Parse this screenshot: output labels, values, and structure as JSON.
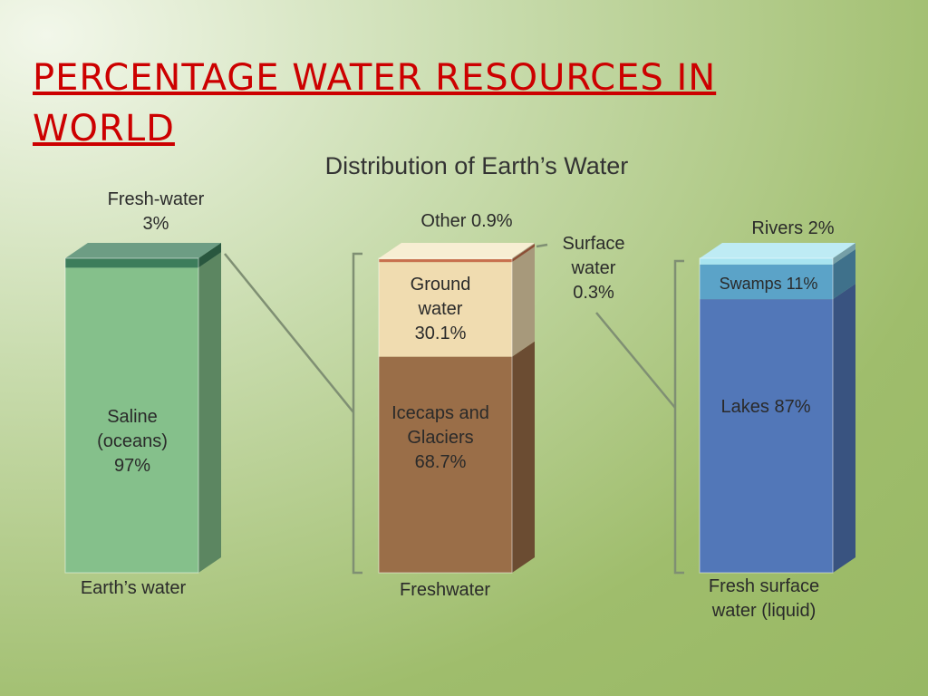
{
  "title": "PERCENTAGE WATER RESOURCES IN WORLD",
  "figure_title": "Distribution of Earth’s Water",
  "chart_data": [
    {
      "type": "stacked-bar",
      "xlabel": "Earth’s water",
      "ylim": [
        0,
        100
      ],
      "series": [
        {
          "name": "Saline (oceans)",
          "color": "#85c08b",
          "values": [
            97
          ],
          "value_labels": [
            "97%"
          ]
        },
        {
          "name": "Fresh-water",
          "color": "#3c7d5b",
          "values": [
            3
          ],
          "value_labels": [
            "3%"
          ]
        }
      ]
    },
    {
      "type": "stacked-bar",
      "xlabel": "Freshwater",
      "ylim": [
        0,
        100
      ],
      "series": [
        {
          "name": "Icecaps and Glaciers",
          "color": "#9a6e48",
          "values": [
            68.7
          ],
          "value_labels": [
            "68.7%"
          ]
        },
        {
          "name": "Ground water",
          "color": "#f0dcb0",
          "values": [
            30.1
          ],
          "value_labels": [
            "30.1%"
          ]
        },
        {
          "name": "Other",
          "color": "#c8704e",
          "values": [
            0.9
          ],
          "value_labels": [
            "0.9%"
          ]
        },
        {
          "name": "Surface water",
          "color": "#f5e8c4",
          "values": [
            0.3
          ],
          "value_labels": [
            "0.3%"
          ]
        }
      ]
    },
    {
      "type": "stacked-bar",
      "xlabel": "Fresh surface water (liquid)",
      "ylim": [
        0,
        100
      ],
      "series": [
        {
          "name": "Lakes",
          "color": "#5277b8",
          "values": [
            87
          ],
          "value_labels": [
            "87%"
          ]
        },
        {
          "name": "Swamps",
          "color": "#5ba3c8",
          "values": [
            11
          ],
          "value_labels": [
            "11%"
          ]
        },
        {
          "name": "Rivers",
          "color": "#a8e4f0",
          "values": [
            2
          ],
          "value_labels": [
            "2%"
          ]
        }
      ]
    }
  ]
}
